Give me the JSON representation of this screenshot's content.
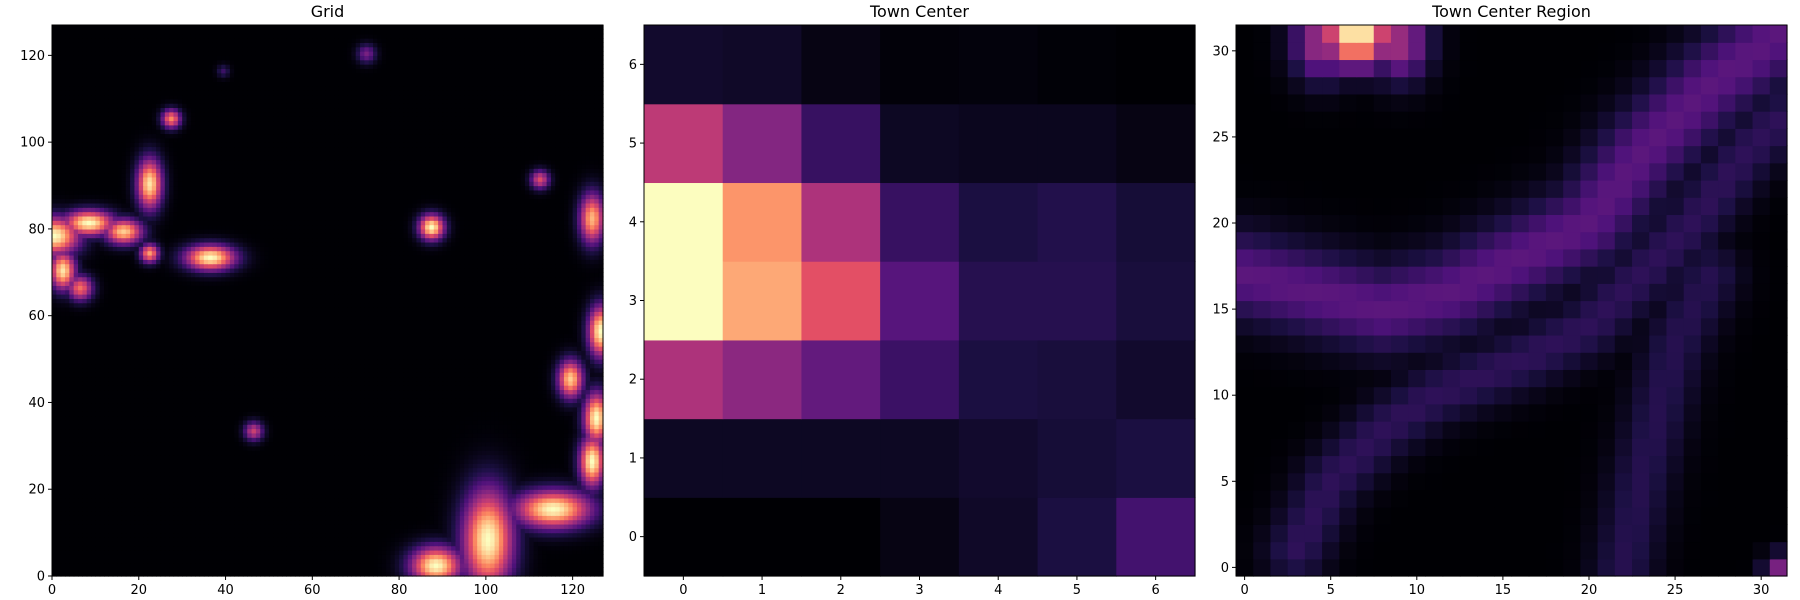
{
  "figure": {
    "background": "#ffffff",
    "colormap": "magma"
  },
  "chart_data": [
    {
      "type": "heatmap",
      "title": "Grid",
      "grid_size": 128,
      "xlim": [
        0,
        127
      ],
      "ylim": [
        0,
        127
      ],
      "xticks": [
        0,
        20,
        40,
        60,
        80,
        100,
        120
      ],
      "yticks": [
        0,
        20,
        40,
        60,
        80,
        100,
        120
      ],
      "xlabel": "",
      "ylabel": "",
      "grid": false,
      "value_range": [
        0,
        1
      ],
      "hotspots": [
        {
          "x": 0,
          "y": 78,
          "sx": 4,
          "sy": 3,
          "v": 1.0
        },
        {
          "x": 8,
          "y": 81,
          "sx": 4,
          "sy": 2,
          "v": 1.0
        },
        {
          "x": 16,
          "y": 79,
          "sx": 3,
          "sy": 2,
          "v": 0.9
        },
        {
          "x": 2,
          "y": 70,
          "sx": 2,
          "sy": 3,
          "v": 0.95
        },
        {
          "x": 6,
          "y": 66,
          "sx": 2,
          "sy": 2,
          "v": 0.7
        },
        {
          "x": 22,
          "y": 90,
          "sx": 2,
          "sy": 4,
          "v": 0.95
        },
        {
          "x": 27,
          "y": 105,
          "sx": 1.5,
          "sy": 1.5,
          "v": 0.75
        },
        {
          "x": 22,
          "y": 74,
          "sx": 1.5,
          "sy": 1.5,
          "v": 0.8
        },
        {
          "x": 36,
          "y": 73,
          "sx": 4,
          "sy": 2,
          "v": 1.0
        },
        {
          "x": 72,
          "y": 120,
          "sx": 1.5,
          "sy": 1.5,
          "v": 0.35
        },
        {
          "x": 39,
          "y": 116,
          "sx": 1,
          "sy": 1,
          "v": 0.2
        },
        {
          "x": 87,
          "y": 80,
          "sx": 2,
          "sy": 2,
          "v": 1.0
        },
        {
          "x": 112,
          "y": 91,
          "sx": 1.5,
          "sy": 1.5,
          "v": 0.6
        },
        {
          "x": 124,
          "y": 82,
          "sx": 2,
          "sy": 4,
          "v": 0.85
        },
        {
          "x": 126,
          "y": 56,
          "sx": 2,
          "sy": 4,
          "v": 1.0
        },
        {
          "x": 119,
          "y": 45,
          "sx": 2,
          "sy": 3,
          "v": 0.9
        },
        {
          "x": 125,
          "y": 36,
          "sx": 2,
          "sy": 4,
          "v": 1.0
        },
        {
          "x": 124,
          "y": 26,
          "sx": 2,
          "sy": 4,
          "v": 1.0
        },
        {
          "x": 115,
          "y": 15,
          "sx": 6,
          "sy": 3,
          "v": 1.0
        },
        {
          "x": 100,
          "y": 8,
          "sx": 4,
          "sy": 8,
          "v": 1.0
        },
        {
          "x": 88,
          "y": 2,
          "sx": 4,
          "sy": 3,
          "v": 1.0
        },
        {
          "x": 46,
          "y": 33,
          "sx": 1.5,
          "sy": 1.5,
          "v": 0.55
        }
      ]
    },
    {
      "type": "heatmap",
      "title": "Town Center",
      "grid_size": 7,
      "xlim": [
        -0.5,
        6.5
      ],
      "ylim": [
        -0.5,
        6.5
      ],
      "xticks": [
        0,
        1,
        2,
        3,
        4,
        5,
        6
      ],
      "yticks": [
        0,
        1,
        2,
        3,
        4,
        5,
        6
      ],
      "xlabel": "",
      "ylabel": "",
      "grid": false,
      "value_range": [
        0,
        1
      ],
      "rows_from_bottom": [
        [
          0.0,
          0.0,
          0.0,
          0.03,
          0.07,
          0.12,
          0.22
        ],
        [
          0.06,
          0.06,
          0.06,
          0.06,
          0.08,
          0.1,
          0.12
        ],
        [
          0.48,
          0.4,
          0.3,
          0.2,
          0.12,
          0.11,
          0.08
        ],
        [
          1.0,
          0.82,
          0.62,
          0.27,
          0.15,
          0.15,
          0.11
        ],
        [
          1.0,
          0.78,
          0.48,
          0.19,
          0.12,
          0.14,
          0.1
        ],
        [
          0.52,
          0.38,
          0.19,
          0.06,
          0.05,
          0.05,
          0.03
        ],
        [
          0.08,
          0.07,
          0.03,
          0.01,
          0.015,
          0.005,
          0.0
        ]
      ]
    },
    {
      "type": "heatmap",
      "title": "Town Center Region",
      "grid_size": 32,
      "xlim": [
        -0.5,
        31.5
      ],
      "ylim": [
        -0.5,
        31.5
      ],
      "xticks": [
        0,
        5,
        10,
        15,
        20,
        25,
        30
      ],
      "yticks": [
        0,
        5,
        10,
        15,
        20,
        25,
        30
      ],
      "xlabel": "",
      "ylabel": "",
      "grid": false,
      "value_range": [
        0,
        1
      ],
      "hotspots": [
        {
          "x": 6.5,
          "y": 31,
          "sx": 1.4,
          "sy": 1.3,
          "v": 1.0
        },
        {
          "x": 4.5,
          "y": 30.5,
          "sx": 1.2,
          "sy": 1.5,
          "v": 0.45
        },
        {
          "x": 9,
          "y": 30.5,
          "sx": 1.2,
          "sy": 1.5,
          "v": 0.45
        },
        {
          "x": 31,
          "y": 0,
          "sx": 0.6,
          "sy": 0.6,
          "v": 0.35
        }
      ],
      "ridges": [
        {
          "points": [
            [
              0,
              17
            ],
            [
              4,
              16
            ],
            [
              8,
              15
            ],
            [
              12,
              16
            ],
            [
              16,
              18
            ],
            [
              20,
              20
            ],
            [
              23,
              24
            ],
            [
              27,
              28
            ],
            [
              31,
              31
            ]
          ],
          "width": 1.8,
          "v": 0.28
        },
        {
          "points": [
            [
              3,
              1
            ],
            [
              5,
              5
            ],
            [
              8,
              8
            ],
            [
              11,
              10
            ],
            [
              16,
              12
            ],
            [
              20,
              14
            ],
            [
              23,
              17
            ],
            [
              26,
              20
            ],
            [
              29,
              24
            ],
            [
              31,
              26
            ]
          ],
          "width": 1.3,
          "v": 0.17
        },
        {
          "points": [
            [
              22,
              0
            ],
            [
              23,
              5
            ],
            [
              24,
              9
            ],
            [
              25,
              13
            ],
            [
              27,
              17
            ]
          ],
          "width": 1.3,
          "v": 0.15
        }
      ]
    }
  ]
}
